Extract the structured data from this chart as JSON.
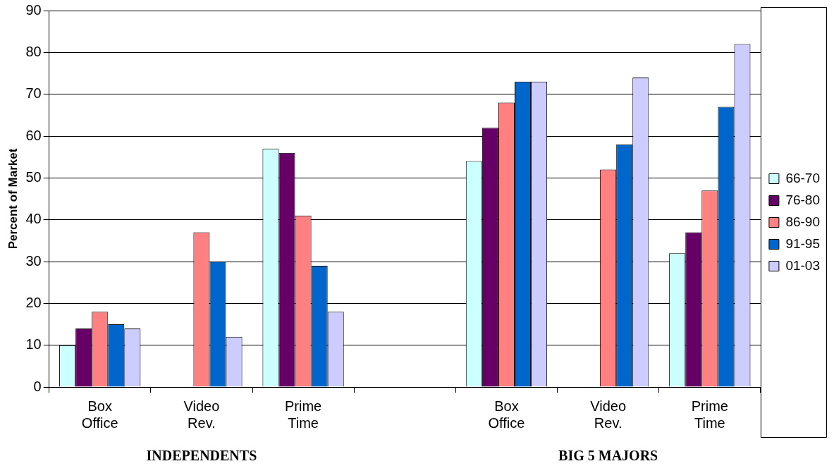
{
  "chart_data": {
    "type": "bar",
    "ylabel": "Percent of Market",
    "categories": [
      "Box Office",
      "Video Rev.",
      "Prime Time",
      null,
      "Box Office",
      "Video Rev.",
      "Prime Time"
    ],
    "series": [
      {
        "name": "66-70",
        "color": "#ccffff",
        "values": [
          10,
          null,
          57,
          null,
          54,
          null,
          32
        ]
      },
      {
        "name": "76-80",
        "color": "#660066",
        "values": [
          14,
          null,
          56,
          null,
          62,
          null,
          37
        ]
      },
      {
        "name": "86-90",
        "color": "#ff8080",
        "values": [
          18,
          37,
          41,
          null,
          68,
          52,
          47
        ]
      },
      {
        "name": "91-95",
        "color": "#0066cc",
        "values": [
          15,
          30,
          29,
          null,
          73,
          58,
          67
        ]
      },
      {
        "name": "01-03",
        "color": "#ccccff",
        "values": [
          14,
          12,
          18,
          null,
          73,
          74,
          82
        ]
      }
    ],
    "ylim": [
      0,
      90
    ],
    "yticks": [
      0,
      10,
      20,
      30,
      40,
      50,
      60,
      70,
      80,
      90
    ],
    "grid": "y",
    "legend": "right",
    "annotations": [
      "INDEPENDENTS",
      "BIG 5 MAJORS"
    ]
  }
}
